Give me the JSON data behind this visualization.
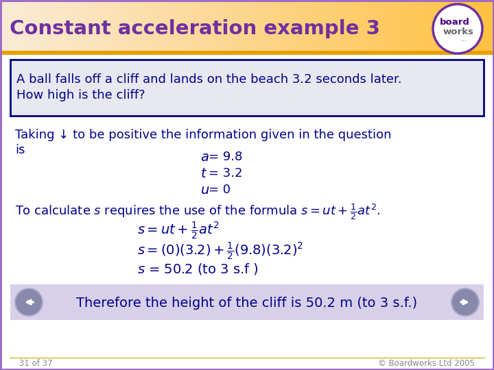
{
  "title": "Constant acceleration example 3",
  "title_color": "#7030A0",
  "title_bg_left": "#FAEBD7",
  "title_bg_right": "#FFB347",
  "bg_color": "#FFFFFF",
  "outer_border_color": "#9966CC",
  "text_color": "#00008B",
  "question_box_bg": "#E8E8F0",
  "question_box_border": "#000080",
  "question_line1": "A ball falls off a cliff and lands on the beach 3.2 seconds later.",
  "question_line2": "How high is the cliff?",
  "footer_left": "31 of 37",
  "footer_right": "© Boardworks Ltd 2005",
  "footer_color": "#888888",
  "conclusion": "Therefore the height of the cliff is 50.2 m (to 3 s.f.)",
  "conclusion_bg": "#D8D0E8",
  "nav_arrow_color": "#8888BB"
}
